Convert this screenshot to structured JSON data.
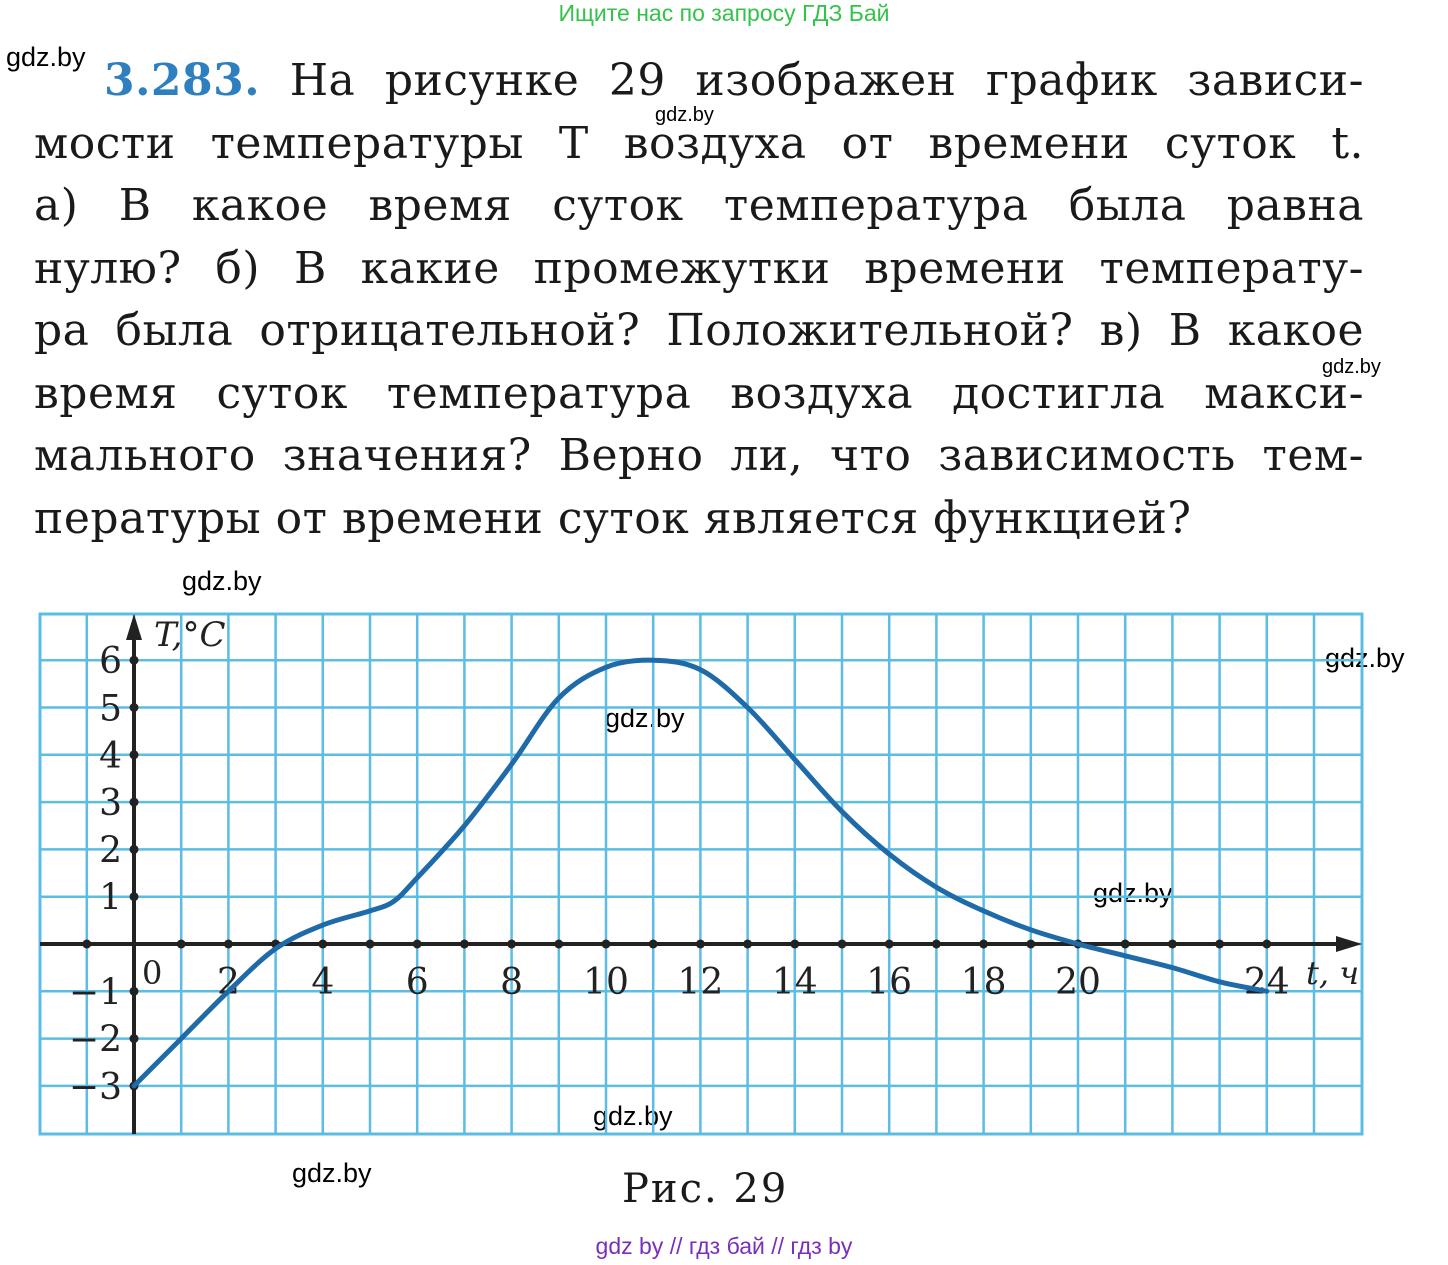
{
  "banner": "Ищите нас по запросу ГДЗ Бай",
  "watermark": "gdz.by",
  "problem": {
    "number": "3.283.",
    "lines": [
      "На рисунке 29 изображен график зависи-",
      "мости температуры T воздуха от времени суток t.",
      "а) В какое время суток температура была равна",
      "нулю? б) В какие промежутки времени температу-",
      "ра была отрицательной? Положительной? в) В какое",
      "время суток температура воздуха достигла макси-",
      "мального значения? Верно ли, что зависимость тем-",
      "пературы от времени суток является функцией?"
    ]
  },
  "caption": "Рис. 29",
  "footer": "gdz by  //  гдз бай  //  гдз by",
  "chart_data": {
    "type": "line",
    "ylabel": "T,°C",
    "xlabel": "t, ч",
    "origin_label": "0",
    "xlim": [
      -2,
      26
    ],
    "ylim": [
      -4,
      7
    ],
    "x_ticks": [
      2,
      4,
      6,
      8,
      10,
      12,
      14,
      16,
      18,
      20,
      24
    ],
    "y_ticks": [
      6,
      5,
      4,
      3,
      2,
      1,
      -1,
      -2,
      -3
    ],
    "grid": true,
    "colors": {
      "grid": "#5bbce4",
      "curve": "#1f6aa8",
      "axis": "#222222"
    },
    "series": [
      {
        "x": [
          0,
          1,
          2,
          3,
          4,
          5,
          5.5,
          6,
          7,
          8,
          9,
          10,
          11,
          12,
          13,
          14,
          15,
          16,
          17,
          18,
          19,
          20,
          21,
          22,
          23,
          24
        ],
        "values": [
          -3,
          -2,
          -1,
          -0.1,
          0.4,
          0.7,
          0.9,
          1.4,
          2.5,
          3.8,
          5.2,
          5.85,
          6,
          5.8,
          5,
          3.9,
          2.8,
          1.9,
          1.2,
          0.7,
          0.3,
          0,
          -0.25,
          -0.5,
          -0.8,
          -1
        ]
      }
    ]
  }
}
